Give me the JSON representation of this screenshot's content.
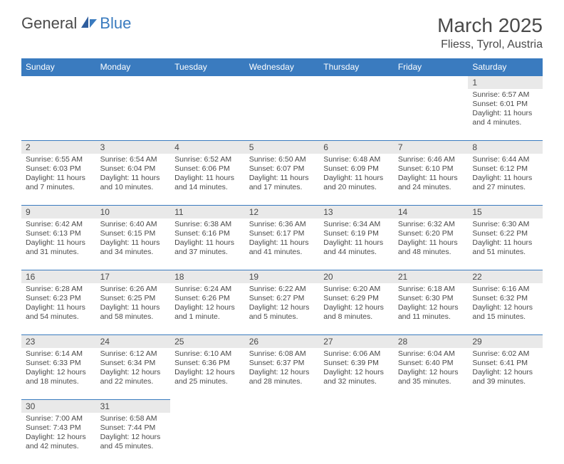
{
  "logo": {
    "word1": "General",
    "word2": "Blue",
    "icon_color": "#3a7bbf"
  },
  "title": "March 2025",
  "location": "Fliess, Tyrol, Austria",
  "colors": {
    "header_bg": "#3a7bbf",
    "header_text": "#ffffff",
    "daynum_bg": "#e9e9e9",
    "cell_border": "#3a7bbf",
    "text": "#4a4a4a"
  },
  "weekdays": [
    "Sunday",
    "Monday",
    "Tuesday",
    "Wednesday",
    "Thursday",
    "Friday",
    "Saturday"
  ],
  "weeks": [
    [
      null,
      null,
      null,
      null,
      null,
      null,
      {
        "n": "1",
        "sr": "Sunrise: 6:57 AM",
        "ss": "Sunset: 6:01 PM",
        "d1": "Daylight: 11 hours",
        "d2": "and 4 minutes."
      }
    ],
    [
      {
        "n": "2",
        "sr": "Sunrise: 6:55 AM",
        "ss": "Sunset: 6:03 PM",
        "d1": "Daylight: 11 hours",
        "d2": "and 7 minutes."
      },
      {
        "n": "3",
        "sr": "Sunrise: 6:54 AM",
        "ss": "Sunset: 6:04 PM",
        "d1": "Daylight: 11 hours",
        "d2": "and 10 minutes."
      },
      {
        "n": "4",
        "sr": "Sunrise: 6:52 AM",
        "ss": "Sunset: 6:06 PM",
        "d1": "Daylight: 11 hours",
        "d2": "and 14 minutes."
      },
      {
        "n": "5",
        "sr": "Sunrise: 6:50 AM",
        "ss": "Sunset: 6:07 PM",
        "d1": "Daylight: 11 hours",
        "d2": "and 17 minutes."
      },
      {
        "n": "6",
        "sr": "Sunrise: 6:48 AM",
        "ss": "Sunset: 6:09 PM",
        "d1": "Daylight: 11 hours",
        "d2": "and 20 minutes."
      },
      {
        "n": "7",
        "sr": "Sunrise: 6:46 AM",
        "ss": "Sunset: 6:10 PM",
        "d1": "Daylight: 11 hours",
        "d2": "and 24 minutes."
      },
      {
        "n": "8",
        "sr": "Sunrise: 6:44 AM",
        "ss": "Sunset: 6:12 PM",
        "d1": "Daylight: 11 hours",
        "d2": "and 27 minutes."
      }
    ],
    [
      {
        "n": "9",
        "sr": "Sunrise: 6:42 AM",
        "ss": "Sunset: 6:13 PM",
        "d1": "Daylight: 11 hours",
        "d2": "and 31 minutes."
      },
      {
        "n": "10",
        "sr": "Sunrise: 6:40 AM",
        "ss": "Sunset: 6:15 PM",
        "d1": "Daylight: 11 hours",
        "d2": "and 34 minutes."
      },
      {
        "n": "11",
        "sr": "Sunrise: 6:38 AM",
        "ss": "Sunset: 6:16 PM",
        "d1": "Daylight: 11 hours",
        "d2": "and 37 minutes."
      },
      {
        "n": "12",
        "sr": "Sunrise: 6:36 AM",
        "ss": "Sunset: 6:17 PM",
        "d1": "Daylight: 11 hours",
        "d2": "and 41 minutes."
      },
      {
        "n": "13",
        "sr": "Sunrise: 6:34 AM",
        "ss": "Sunset: 6:19 PM",
        "d1": "Daylight: 11 hours",
        "d2": "and 44 minutes."
      },
      {
        "n": "14",
        "sr": "Sunrise: 6:32 AM",
        "ss": "Sunset: 6:20 PM",
        "d1": "Daylight: 11 hours",
        "d2": "and 48 minutes."
      },
      {
        "n": "15",
        "sr": "Sunrise: 6:30 AM",
        "ss": "Sunset: 6:22 PM",
        "d1": "Daylight: 11 hours",
        "d2": "and 51 minutes."
      }
    ],
    [
      {
        "n": "16",
        "sr": "Sunrise: 6:28 AM",
        "ss": "Sunset: 6:23 PM",
        "d1": "Daylight: 11 hours",
        "d2": "and 54 minutes."
      },
      {
        "n": "17",
        "sr": "Sunrise: 6:26 AM",
        "ss": "Sunset: 6:25 PM",
        "d1": "Daylight: 11 hours",
        "d2": "and 58 minutes."
      },
      {
        "n": "18",
        "sr": "Sunrise: 6:24 AM",
        "ss": "Sunset: 6:26 PM",
        "d1": "Daylight: 12 hours",
        "d2": "and 1 minute."
      },
      {
        "n": "19",
        "sr": "Sunrise: 6:22 AM",
        "ss": "Sunset: 6:27 PM",
        "d1": "Daylight: 12 hours",
        "d2": "and 5 minutes."
      },
      {
        "n": "20",
        "sr": "Sunrise: 6:20 AM",
        "ss": "Sunset: 6:29 PM",
        "d1": "Daylight: 12 hours",
        "d2": "and 8 minutes."
      },
      {
        "n": "21",
        "sr": "Sunrise: 6:18 AM",
        "ss": "Sunset: 6:30 PM",
        "d1": "Daylight: 12 hours",
        "d2": "and 11 minutes."
      },
      {
        "n": "22",
        "sr": "Sunrise: 6:16 AM",
        "ss": "Sunset: 6:32 PM",
        "d1": "Daylight: 12 hours",
        "d2": "and 15 minutes."
      }
    ],
    [
      {
        "n": "23",
        "sr": "Sunrise: 6:14 AM",
        "ss": "Sunset: 6:33 PM",
        "d1": "Daylight: 12 hours",
        "d2": "and 18 minutes."
      },
      {
        "n": "24",
        "sr": "Sunrise: 6:12 AM",
        "ss": "Sunset: 6:34 PM",
        "d1": "Daylight: 12 hours",
        "d2": "and 22 minutes."
      },
      {
        "n": "25",
        "sr": "Sunrise: 6:10 AM",
        "ss": "Sunset: 6:36 PM",
        "d1": "Daylight: 12 hours",
        "d2": "and 25 minutes."
      },
      {
        "n": "26",
        "sr": "Sunrise: 6:08 AM",
        "ss": "Sunset: 6:37 PM",
        "d1": "Daylight: 12 hours",
        "d2": "and 28 minutes."
      },
      {
        "n": "27",
        "sr": "Sunrise: 6:06 AM",
        "ss": "Sunset: 6:39 PM",
        "d1": "Daylight: 12 hours",
        "d2": "and 32 minutes."
      },
      {
        "n": "28",
        "sr": "Sunrise: 6:04 AM",
        "ss": "Sunset: 6:40 PM",
        "d1": "Daylight: 12 hours",
        "d2": "and 35 minutes."
      },
      {
        "n": "29",
        "sr": "Sunrise: 6:02 AM",
        "ss": "Sunset: 6:41 PM",
        "d1": "Daylight: 12 hours",
        "d2": "and 39 minutes."
      }
    ],
    [
      {
        "n": "30",
        "sr": "Sunrise: 7:00 AM",
        "ss": "Sunset: 7:43 PM",
        "d1": "Daylight: 12 hours",
        "d2": "and 42 minutes."
      },
      {
        "n": "31",
        "sr": "Sunrise: 6:58 AM",
        "ss": "Sunset: 7:44 PM",
        "d1": "Daylight: 12 hours",
        "d2": "and 45 minutes."
      },
      null,
      null,
      null,
      null,
      null
    ]
  ]
}
